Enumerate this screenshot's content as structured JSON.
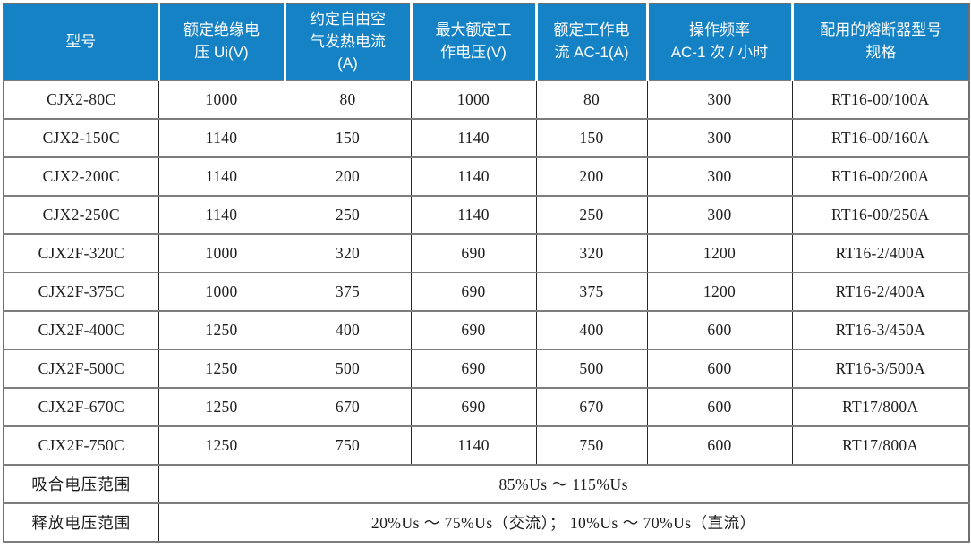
{
  "table": {
    "columns": [
      "型号",
      "额定绝缘电\n压 Ui(V)",
      "约定自由空\n气发热电流\n(A)",
      "最大额定工\n作电压(V)",
      "额定工作电\n流 AC-1(A)",
      "操作频率\nAC-1 次 / 小时",
      "配用的熔断器型号\n规格"
    ],
    "rows": [
      [
        "CJX2-80C",
        "1000",
        "80",
        "1000",
        "80",
        "300",
        "RT16-00/100A"
      ],
      [
        "CJX2-150C",
        "1140",
        "150",
        "1140",
        "150",
        "300",
        "RT16-00/160A"
      ],
      [
        "CJX2-200C",
        "1140",
        "200",
        "1140",
        "200",
        "300",
        "RT16-00/200A"
      ],
      [
        "CJX2-250C",
        "1140",
        "250",
        "1140",
        "250",
        "300",
        "RT16-00/250A"
      ],
      [
        "CJX2F-320C",
        "1000",
        "320",
        "690",
        "320",
        "1200",
        "RT16-2/400A"
      ],
      [
        "CJX2F-375C",
        "1000",
        "375",
        "690",
        "375",
        "1200",
        "RT16-2/400A"
      ],
      [
        "CJX2F-400C",
        "1250",
        "400",
        "690",
        "400",
        "600",
        "RT16-3/450A"
      ],
      [
        "CJX2F-500C",
        "1250",
        "500",
        "690",
        "500",
        "600",
        "RT16-3/500A"
      ],
      [
        "CJX2F-670C",
        "1250",
        "670",
        "690",
        "670",
        "600",
        "RT17/800A"
      ],
      [
        "CJX2F-750C",
        "1250",
        "750",
        "1140",
        "750",
        "600",
        "RT17/800A"
      ]
    ],
    "footer": [
      {
        "label": "吸合电压范围",
        "value": "85%Us ～ 115%Us"
      },
      {
        "label": "释放电压范围",
        "value": "20%Us ～ 75%Us（交流）； 10%Us ～ 70%Us（直流）"
      }
    ]
  },
  "colors": {
    "header_bg": "#1482C5",
    "header_text": "#ffffff",
    "grid_horizontal": "#7d7d7d",
    "grid_vertical": "#262626",
    "body_text": "#1c1c1c"
  }
}
